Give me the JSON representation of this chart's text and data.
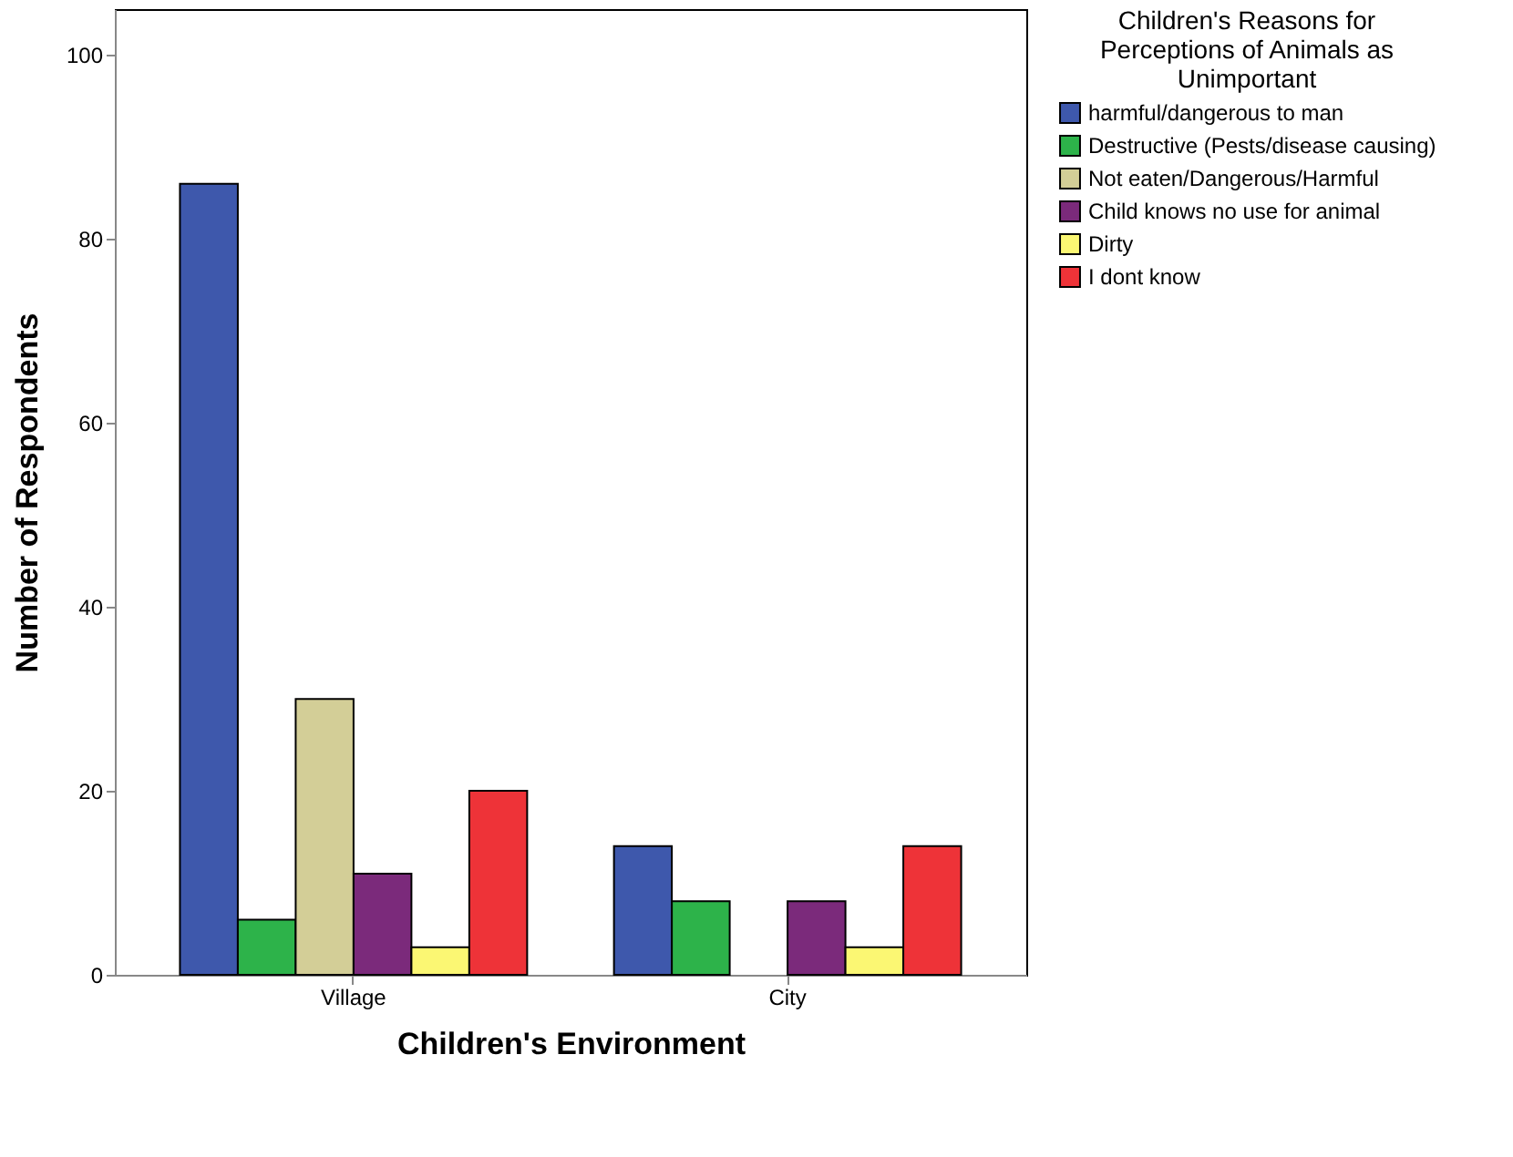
{
  "chart_data": {
    "type": "bar",
    "xlabel": "Children's Environment",
    "ylabel": "Number of Respondents",
    "legend_title": "Children's Reasons for Perceptions of Animals as Unimportant",
    "categories": [
      "Village",
      "City"
    ],
    "series": [
      {
        "name": "harmful/dangerous to man",
        "color": "#3e58ac",
        "values": [
          86,
          14
        ]
      },
      {
        "name": "Destructive (Pests/disease causing)",
        "color": "#2db34a",
        "values": [
          6,
          8
        ]
      },
      {
        "name": "Not eaten/Dangerous/Harmful",
        "color": "#d3ce97",
        "values": [
          30,
          null
        ]
      },
      {
        "name": "Child knows no use for animal",
        "color": "#7b2a7b",
        "values": [
          11,
          8
        ]
      },
      {
        "name": "Dirty",
        "color": "#fbf773",
        "values": [
          3,
          3
        ]
      },
      {
        "name": "I dont know",
        "color": "#ee3338",
        "values": [
          20,
          14
        ]
      }
    ],
    "ylim": [
      0,
      105
    ],
    "yticks": [
      0,
      20,
      40,
      60,
      80,
      100
    ],
    "grid": false,
    "legend": "top right"
  }
}
